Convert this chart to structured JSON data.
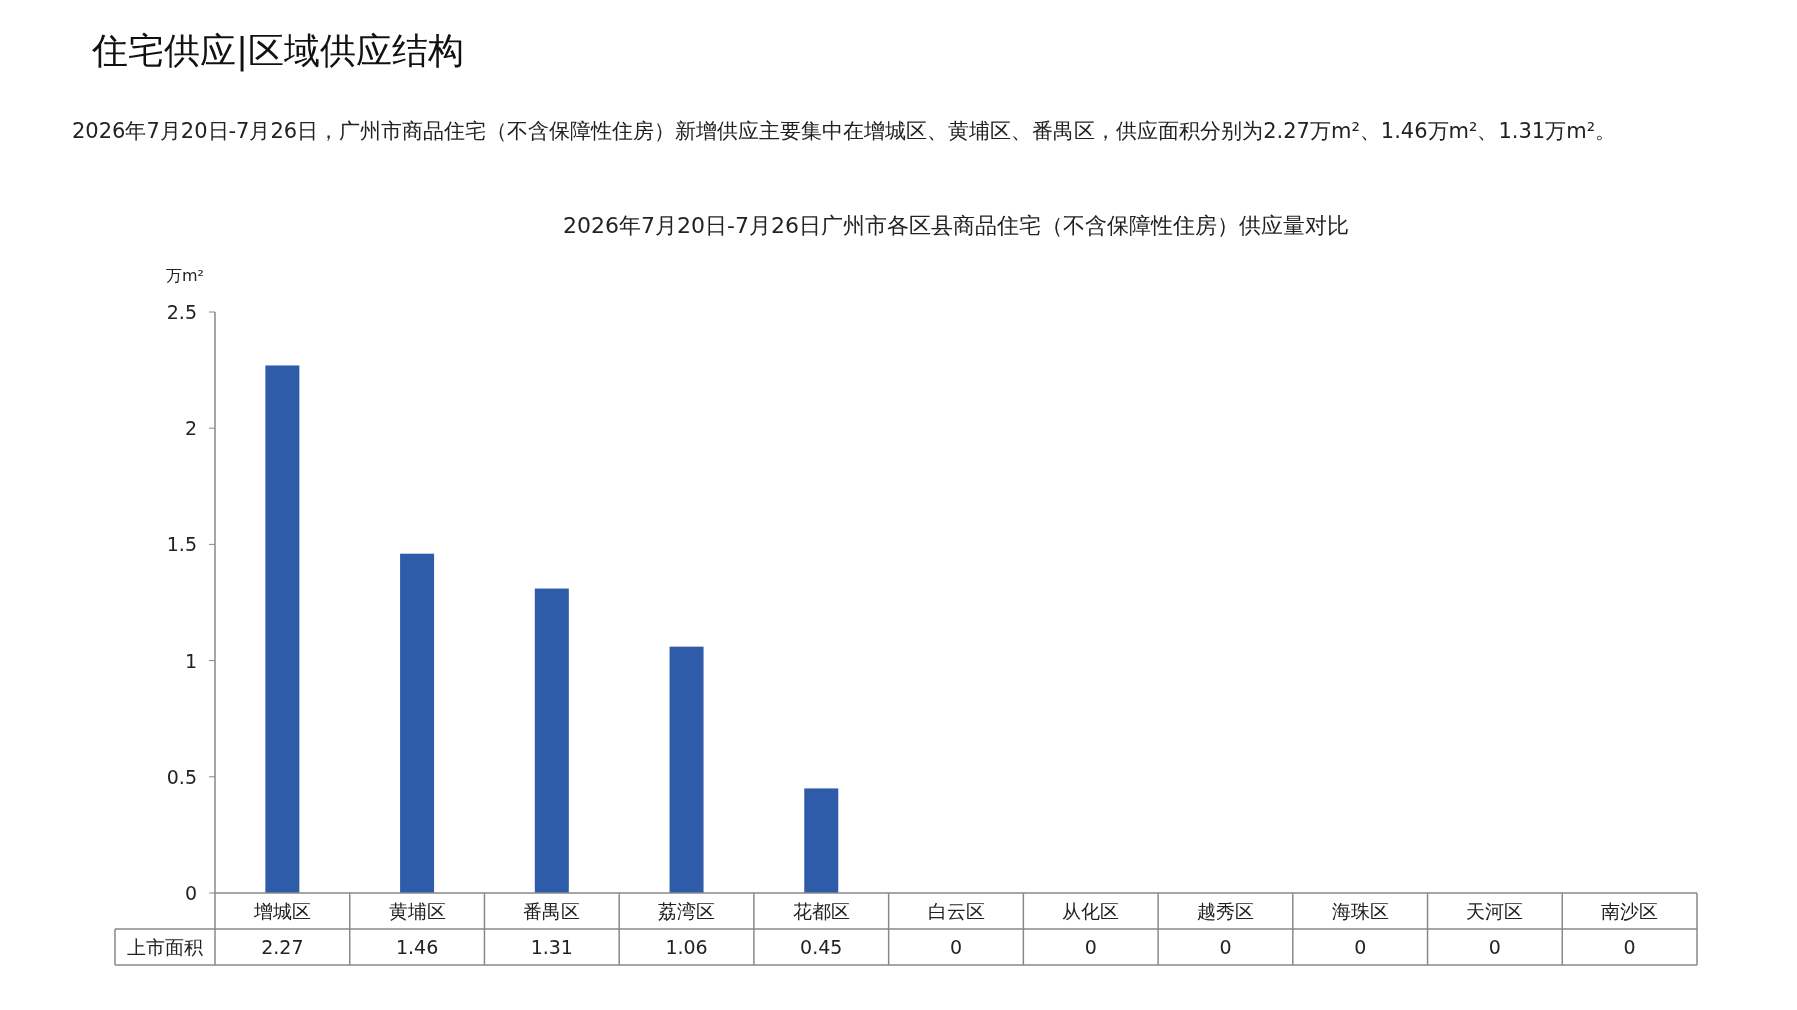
{
  "chart_data": {
    "type": "bar",
    "title": "2026年7月20日-7月26日广州市各区县商品住宅（不含保障性住房）供应量对比",
    "ylabel": "万m²",
    "annotations": [
      "住宅供应|区域供应结构",
      "2026年7月20日-7月26日，广州市商品住宅（不含保障性住房）新增供应主要集中在增城区、黄埔区、番禺区，供应面积分别为2.27万m²、1.46万m²、1.31万m²。"
    ],
    "categories": [
      "增城区",
      "黄埔区",
      "番禺区",
      "荔湾区",
      "花都区",
      "白云区",
      "从化区",
      "越秀区",
      "海珠区",
      "天河区",
      "南沙区"
    ],
    "series": [
      {
        "name": "上市面积",
        "color": "#2e5ca8",
        "values": [
          2.27,
          1.46,
          1.31,
          1.06,
          0.45,
          0,
          0,
          0,
          0,
          0,
          0
        ]
      }
    ],
    "ylim": [
      0,
      2.5
    ],
    "yticks": [
      0,
      0.5,
      1,
      1.5,
      2,
      2.5
    ],
    "data_labels": true
  }
}
